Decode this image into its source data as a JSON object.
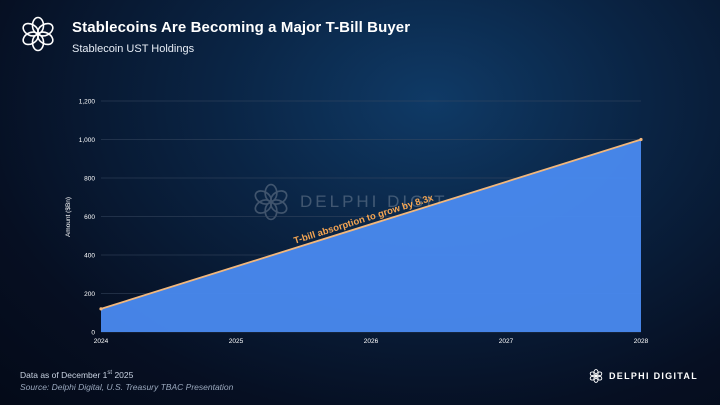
{
  "header": {
    "title": "Stablecoins Are Becoming a Major T-Bill Buyer",
    "subtitle": "Stablecoin UST Holdings"
  },
  "icons": {
    "header_logo": "delphi-flower-logo-icon",
    "watermark_logo": "delphi-flower-logo-icon",
    "brand_logo": "delphi-flower-logo-icon"
  },
  "watermark": {
    "text": "DELPHI DIGIT"
  },
  "footer": {
    "date_prefix": "Data as of December 1",
    "date_sup": "st",
    "date_suffix": " 2025",
    "source": "Source: Delphi Digital, U.S. Treasury TBAC Presentation"
  },
  "brand": {
    "name": "DELPHI DIGITAL"
  },
  "colors": {
    "area_fill": "#4a8af0",
    "area_line": "#f2b77c",
    "annotation": "#f5a552",
    "axis_text": "#ffffff",
    "grid": "#3a4a63"
  },
  "chart_data": {
    "type": "area",
    "title": "",
    "xlabel": "",
    "ylabel": "Amount ($Bn)",
    "x": [
      "2024",
      "2025",
      "2026",
      "2027",
      "2028"
    ],
    "x_start": 2024,
    "x_end": 2028,
    "yticks": [
      0,
      200,
      400,
      600,
      800,
      1000,
      1200
    ],
    "ylim": [
      0,
      1200
    ],
    "series": [
      {
        "values": [
          {
            "x": 2024,
            "y": 120
          },
          {
            "x": 2028,
            "y": 1000
          }
        ]
      }
    ],
    "annotation": {
      "text": "T-bill absorption to grow by 8.3x"
    },
    "grid": true,
    "legend": "none"
  }
}
